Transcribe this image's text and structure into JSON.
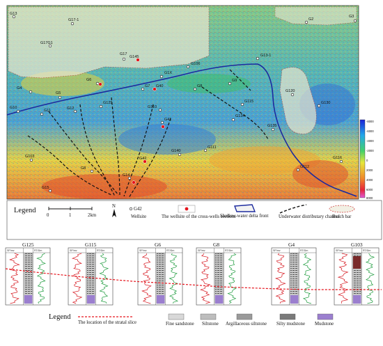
{
  "map": {
    "wells": [
      {
        "label": "G13"
      },
      {
        "label": "G17G1"
      },
      {
        "label": "G17-1"
      },
      {
        "label": "G17"
      },
      {
        "label": "G1X"
      },
      {
        "label": "G106"
      },
      {
        "label": "G13-1"
      },
      {
        "label": "G2"
      },
      {
        "label": "G3"
      },
      {
        "label": "G4"
      },
      {
        "label": "G5"
      },
      {
        "label": "G6"
      },
      {
        "label": "G7"
      },
      {
        "label": "G8"
      },
      {
        "label": "G9"
      },
      {
        "label": "G10"
      },
      {
        "label": "G11"
      },
      {
        "label": "G12"
      },
      {
        "label": "G125"
      },
      {
        "label": "G110"
      },
      {
        "label": "G115"
      },
      {
        "label": "G120"
      },
      {
        "label": "G130"
      },
      {
        "label": "G135"
      },
      {
        "label": "G140"
      },
      {
        "label": "G111"
      },
      {
        "label": "G103"
      },
      {
        "label": "G8"
      },
      {
        "label": "G41"
      },
      {
        "label": "G14"
      },
      {
        "label": "G15"
      },
      {
        "label": "G112"
      },
      {
        "label": "G116"
      },
      {
        "label": "G134"
      },
      {
        "label": "G145"
      },
      {
        "label": "G40"
      },
      {
        "label": "G42"
      }
    ],
    "colorbar_ticks": [
      "-8000",
      "-6000",
      "-4000",
      "-2000",
      "0",
      "2000",
      "4000",
      "6000",
      "8000"
    ]
  },
  "legend": {
    "title": "Legend",
    "scale_labels": [
      "0",
      "1",
      "2km"
    ],
    "north": "N",
    "well_sample": "G42",
    "wellsite": "Wellsite",
    "cross_section_wells": "The wellsite of the cross-wells sections",
    "delta_front": "Shallow-water delta front",
    "channel": "Underwater distributary channel",
    "beach_bar": "Beach bar"
  },
  "logs": {
    "wells": [
      {
        "name": "G125"
      },
      {
        "name": "G115"
      },
      {
        "name": "G6"
      },
      {
        "name": "G8"
      },
      {
        "name": "G4"
      },
      {
        "name": "G103"
      }
    ],
    "curve_label_left": "SP/mv",
    "curve_label_right": "RT/Ωm"
  },
  "lithology_legend": {
    "title": "Legend",
    "slice": "The location of the stratal slice",
    "items": [
      {
        "label": "Fine sandstone",
        "color": "#d8d8d8"
      },
      {
        "label": "Siltstone",
        "color": "#bdbdbd"
      },
      {
        "label": "Argillaceous siltstone",
        "color": "#9a9a9a"
      },
      {
        "label": "Silty mudstone",
        "color": "#7a7a7a"
      },
      {
        "label": "Mudstone",
        "color": "#9b7fcf"
      }
    ]
  }
}
